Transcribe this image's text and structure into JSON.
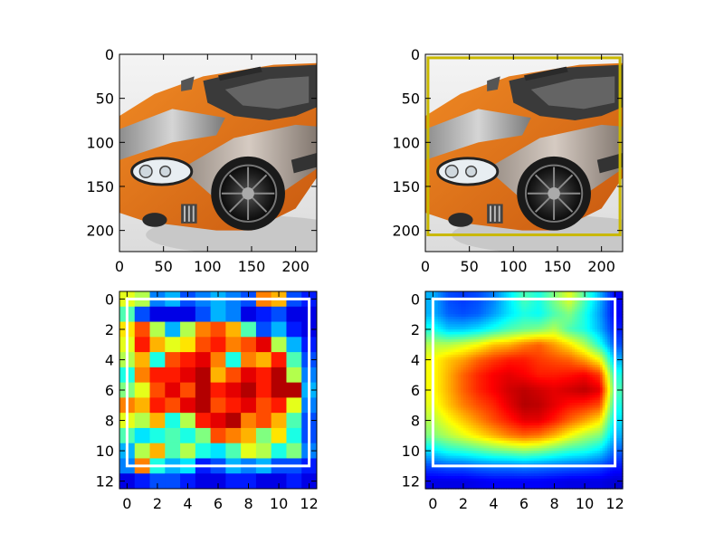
{
  "figure": {
    "background": "#ffffff"
  },
  "chart_data": [
    {
      "id": "car-image",
      "type": "image",
      "content": "orange-gray sports car photo",
      "xlim": [
        0,
        224
      ],
      "ylim": [
        224,
        0
      ],
      "xticks": [
        0,
        50,
        100,
        150,
        200
      ],
      "yticks": [
        0,
        50,
        100,
        150,
        200
      ],
      "title": "",
      "xlabel": "",
      "ylabel": ""
    },
    {
      "id": "car-image-with-box",
      "type": "image",
      "content": "orange-gray sports car photo",
      "xlim": [
        0,
        224
      ],
      "ylim": [
        224,
        0
      ],
      "xticks": [
        0,
        50,
        100,
        150,
        200
      ],
      "yticks": [
        0,
        50,
        100,
        150,
        200
      ],
      "box": {
        "x0": 3,
        "y0": 4,
        "x1": 221,
        "y1": 205,
        "color": "#c9b800"
      },
      "title": "",
      "xlabel": "",
      "ylabel": ""
    },
    {
      "id": "heatmap-raw",
      "type": "heatmap",
      "colormap": "jet",
      "smoothing": "none",
      "xlim": [
        -0.5,
        12.5
      ],
      "ylim": [
        12.5,
        -0.5
      ],
      "xticks": [
        0,
        2,
        4,
        6,
        8,
        10,
        12
      ],
      "yticks": [
        0,
        2,
        4,
        6,
        8,
        10,
        12
      ],
      "box": {
        "x0": 0,
        "y0": 0,
        "x1": 12,
        "y1": 11,
        "color": "#ffffff"
      },
      "grid": [
        [
          0.6,
          0.55,
          0.25,
          0.3,
          0.2,
          0.25,
          0.3,
          0.25,
          0.2,
          0.75,
          0.7,
          0.2,
          0.15
        ],
        [
          0.45,
          0.2,
          0.1,
          0.1,
          0.1,
          0.2,
          0.3,
          0.25,
          0.1,
          0.15,
          0.2,
          0.1,
          0.1
        ],
        [
          0.65,
          0.8,
          0.55,
          0.3,
          0.55,
          0.75,
          0.8,
          0.7,
          0.45,
          0.2,
          0.3,
          0.15,
          0.1
        ],
        [
          0.6,
          0.85,
          0.7,
          0.6,
          0.65,
          0.8,
          0.85,
          0.75,
          0.8,
          0.9,
          0.55,
          0.3,
          0.15
        ],
        [
          0.55,
          0.7,
          0.4,
          0.8,
          0.85,
          0.9,
          0.75,
          0.4,
          0.75,
          0.7,
          0.85,
          0.45,
          0.2
        ],
        [
          0.4,
          0.75,
          0.85,
          0.85,
          0.9,
          0.95,
          0.7,
          0.8,
          0.9,
          0.85,
          0.95,
          0.55,
          0.25
        ],
        [
          0.5,
          0.6,
          0.8,
          0.9,
          0.8,
          0.95,
          0.85,
          0.9,
          0.95,
          0.85,
          0.95,
          0.95,
          0.3
        ],
        [
          0.75,
          0.7,
          0.85,
          0.8,
          0.9,
          0.95,
          0.8,
          0.85,
          0.9,
          0.8,
          0.85,
          0.6,
          0.25
        ],
        [
          0.6,
          0.55,
          0.7,
          0.4,
          0.55,
          0.85,
          0.9,
          0.95,
          0.75,
          0.8,
          0.7,
          0.45,
          0.2
        ],
        [
          0.45,
          0.35,
          0.4,
          0.45,
          0.4,
          0.5,
          0.8,
          0.75,
          0.7,
          0.5,
          0.65,
          0.4,
          0.2
        ],
        [
          0.3,
          0.55,
          0.7,
          0.45,
          0.55,
          0.4,
          0.35,
          0.45,
          0.6,
          0.55,
          0.4,
          0.5,
          0.25
        ],
        [
          0.25,
          0.75,
          0.4,
          0.3,
          0.35,
          0.15,
          0.2,
          0.3,
          0.25,
          0.3,
          0.2,
          0.2,
          0.15
        ],
        [
          0.1,
          0.15,
          0.2,
          0.2,
          0.15,
          0.1,
          0.1,
          0.15,
          0.15,
          0.1,
          0.1,
          0.15,
          0.1
        ]
      ],
      "title": "",
      "xlabel": "",
      "ylabel": ""
    },
    {
      "id": "heatmap-smooth",
      "type": "heatmap",
      "colormap": "jet",
      "smoothing": "bilinear",
      "xlim": [
        -0.5,
        12.5
      ],
      "ylim": [
        12.5,
        -0.5
      ],
      "xticks": [
        0,
        2,
        4,
        6,
        8,
        10,
        12
      ],
      "yticks": [
        0,
        2,
        4,
        6,
        8,
        10,
        12
      ],
      "box": {
        "x0": 0,
        "y0": 0,
        "x1": 12,
        "y1": 11,
        "color": "#ffffff"
      },
      "grid": [
        [
          0.3,
          0.2,
          0.18,
          0.2,
          0.25,
          0.35,
          0.45,
          0.4,
          0.5,
          0.6,
          0.45,
          0.3,
          0.12
        ],
        [
          0.3,
          0.22,
          0.2,
          0.22,
          0.28,
          0.35,
          0.4,
          0.38,
          0.45,
          0.5,
          0.4,
          0.28,
          0.12
        ],
        [
          0.4,
          0.32,
          0.32,
          0.35,
          0.4,
          0.45,
          0.48,
          0.5,
          0.55,
          0.45,
          0.4,
          0.3,
          0.15
        ],
        [
          0.55,
          0.55,
          0.58,
          0.62,
          0.68,
          0.7,
          0.75,
          0.78,
          0.72,
          0.65,
          0.55,
          0.4,
          0.2
        ],
        [
          0.62,
          0.68,
          0.72,
          0.78,
          0.82,
          0.85,
          0.85,
          0.82,
          0.8,
          0.78,
          0.72,
          0.62,
          0.3
        ],
        [
          0.62,
          0.7,
          0.78,
          0.84,
          0.88,
          0.9,
          0.88,
          0.85,
          0.85,
          0.86,
          0.88,
          0.82,
          0.4
        ],
        [
          0.62,
          0.7,
          0.78,
          0.84,
          0.88,
          0.92,
          0.94,
          0.92,
          0.9,
          0.92,
          0.94,
          0.9,
          0.45
        ],
        [
          0.6,
          0.68,
          0.75,
          0.8,
          0.84,
          0.9,
          0.95,
          0.94,
          0.9,
          0.86,
          0.84,
          0.8,
          0.4
        ],
        [
          0.55,
          0.62,
          0.68,
          0.74,
          0.8,
          0.85,
          0.9,
          0.9,
          0.85,
          0.78,
          0.72,
          0.65,
          0.35
        ],
        [
          0.5,
          0.55,
          0.6,
          0.65,
          0.7,
          0.75,
          0.78,
          0.76,
          0.7,
          0.62,
          0.55,
          0.5,
          0.3
        ],
        [
          0.35,
          0.4,
          0.42,
          0.45,
          0.48,
          0.5,
          0.52,
          0.5,
          0.46,
          0.42,
          0.4,
          0.35,
          0.22
        ],
        [
          0.2,
          0.22,
          0.22,
          0.24,
          0.25,
          0.25,
          0.26,
          0.25,
          0.24,
          0.23,
          0.22,
          0.2,
          0.15
        ],
        [
          0.1,
          0.1,
          0.1,
          0.11,
          0.12,
          0.12,
          0.12,
          0.12,
          0.11,
          0.1,
          0.1,
          0.1,
          0.08
        ]
      ],
      "title": "",
      "xlabel": "",
      "ylabel": ""
    }
  ]
}
